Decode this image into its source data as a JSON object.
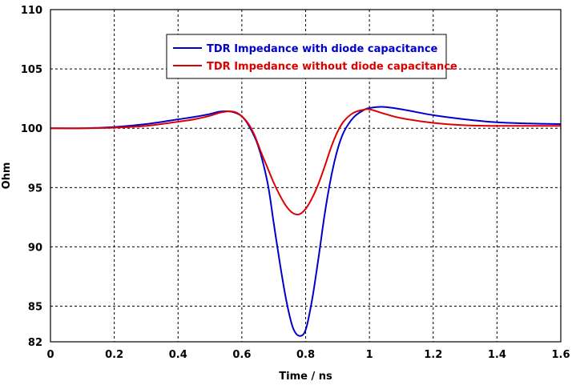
{
  "chart_data": {
    "type": "line",
    "title": "",
    "xlabel": "Time / ns",
    "ylabel": "Ohm",
    "xlim": [
      0,
      1.6
    ],
    "ylim": [
      82,
      110
    ],
    "x_ticks": [
      "0",
      "0.2",
      "0.4",
      "0.6",
      "0.8",
      "1",
      "1.2",
      "1.4",
      "1.6"
    ],
    "x_tick_values": [
      0,
      0.2,
      0.4,
      0.6,
      0.8,
      1.0,
      1.2,
      1.4,
      1.6
    ],
    "y_ticks": [
      "82",
      "85",
      "90",
      "95",
      "100",
      "105",
      "110"
    ],
    "y_tick_values": [
      82,
      85,
      90,
      95,
      100,
      105,
      110
    ],
    "grid": true,
    "legend_position": "top-center",
    "series": [
      {
        "name": "TDR Impedance with diode capacitance",
        "color": "#0000cc",
        "x": [
          0,
          0.1,
          0.2,
          0.3,
          0.4,
          0.45,
          0.5,
          0.53,
          0.56,
          0.58,
          0.6,
          0.62,
          0.65,
          0.68,
          0.7,
          0.72,
          0.74,
          0.76,
          0.78,
          0.8,
          0.82,
          0.84,
          0.86,
          0.88,
          0.9,
          0.92,
          0.95,
          0.98,
          1.0,
          1.04,
          1.1,
          1.2,
          1.3,
          1.4,
          1.5,
          1.6
        ],
        "y": [
          100.0,
          100.0,
          100.1,
          100.35,
          100.75,
          100.95,
          101.2,
          101.4,
          101.42,
          101.3,
          101.0,
          100.3,
          98.6,
          95.5,
          92.0,
          88.5,
          85.4,
          83.2,
          82.5,
          83.0,
          85.5,
          89.0,
          92.8,
          95.9,
          98.2,
          99.7,
          100.9,
          101.5,
          101.7,
          101.8,
          101.6,
          101.1,
          100.75,
          100.5,
          100.4,
          100.35
        ]
      },
      {
        "name": "TDR Impedance without diode capacitance",
        "color": "#dd0000",
        "x": [
          0,
          0.1,
          0.2,
          0.3,
          0.4,
          0.45,
          0.5,
          0.53,
          0.56,
          0.58,
          0.6,
          0.62,
          0.64,
          0.66,
          0.68,
          0.7,
          0.72,
          0.74,
          0.76,
          0.78,
          0.8,
          0.82,
          0.84,
          0.86,
          0.88,
          0.9,
          0.92,
          0.95,
          0.98,
          1.0,
          1.05,
          1.1,
          1.2,
          1.3,
          1.4,
          1.5,
          1.6
        ],
        "y": [
          100.0,
          100.0,
          100.05,
          100.2,
          100.55,
          100.75,
          101.05,
          101.3,
          101.42,
          101.35,
          101.0,
          100.4,
          99.4,
          98.0,
          96.7,
          95.4,
          94.3,
          93.4,
          92.85,
          92.75,
          93.2,
          94.1,
          95.3,
          96.8,
          98.4,
          99.7,
          100.6,
          101.3,
          101.55,
          101.6,
          101.2,
          100.85,
          100.45,
          100.25,
          100.2,
          100.2,
          100.2
        ]
      }
    ]
  }
}
